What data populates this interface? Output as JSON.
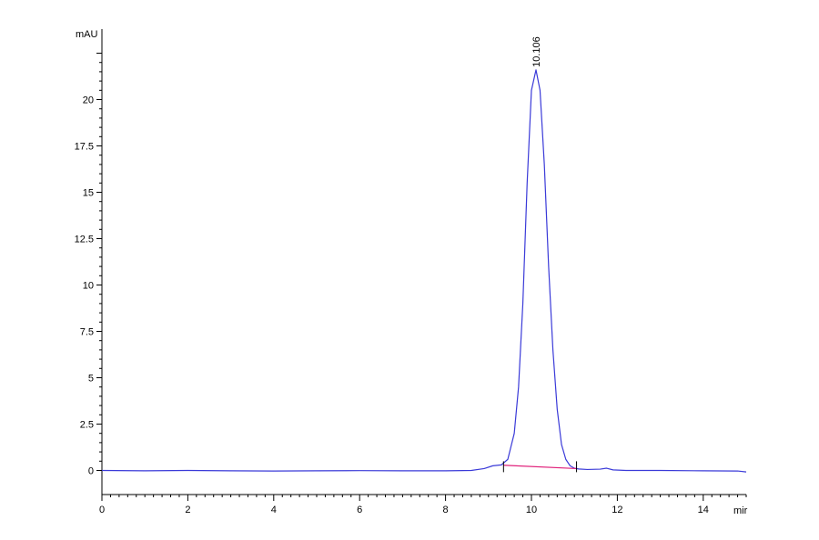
{
  "chart_data": {
    "type": "line",
    "title": "",
    "ylabel": "mAU",
    "xlabel": "mir",
    "xlim": [
      0,
      15
    ],
    "ylim": [
      -1.3,
      23.8
    ],
    "x_ticks": [
      0,
      2,
      4,
      6,
      8,
      10,
      12,
      14
    ],
    "x_tick_labels": [
      "0",
      "2",
      "4",
      "6",
      "8",
      "10",
      "12",
      "14"
    ],
    "y_ticks": [
      0,
      2.5,
      5,
      7.5,
      10,
      12.5,
      15,
      17.5,
      20
    ],
    "y_tick_labels": [
      "0",
      "2.5",
      "5",
      "7.5",
      "10",
      "12.5",
      "15",
      "17.5",
      "20"
    ],
    "grid": false,
    "series": [
      {
        "color": "#3a3ad8",
        "x": [
          0,
          1,
          2,
          3,
          4,
          5,
          6,
          7,
          8,
          8.6,
          8.9,
          9.1,
          9.3,
          9.45,
          9.6,
          9.7,
          9.8,
          9.9,
          10.0,
          10.106,
          10.2,
          10.3,
          10.4,
          10.5,
          10.6,
          10.7,
          10.8,
          10.9,
          11.0,
          11.1,
          11.3,
          11.6,
          11.75,
          11.9,
          12.2,
          13,
          14,
          14.8,
          15
        ],
        "y": [
          0.0,
          -0.02,
          0.0,
          -0.02,
          -0.03,
          -0.02,
          -0.01,
          -0.02,
          -0.02,
          0.0,
          0.1,
          0.25,
          0.3,
          0.6,
          2.0,
          4.5,
          9.0,
          15.5,
          20.5,
          21.6,
          20.5,
          16.5,
          11.0,
          6.5,
          3.3,
          1.4,
          0.6,
          0.25,
          0.12,
          0.08,
          0.05,
          0.07,
          0.12,
          0.03,
          0.0,
          0.0,
          -0.02,
          -0.03,
          -0.08
        ]
      },
      {
        "color": "#e0207a",
        "x": [
          9.35,
          11.05
        ],
        "y": [
          0.28,
          0.1
        ]
      }
    ],
    "annotations": [
      {
        "text": "10.106",
        "x": 10.106,
        "y": 21.6
      }
    ],
    "integration_marks": [
      9.35,
      11.05
    ]
  }
}
